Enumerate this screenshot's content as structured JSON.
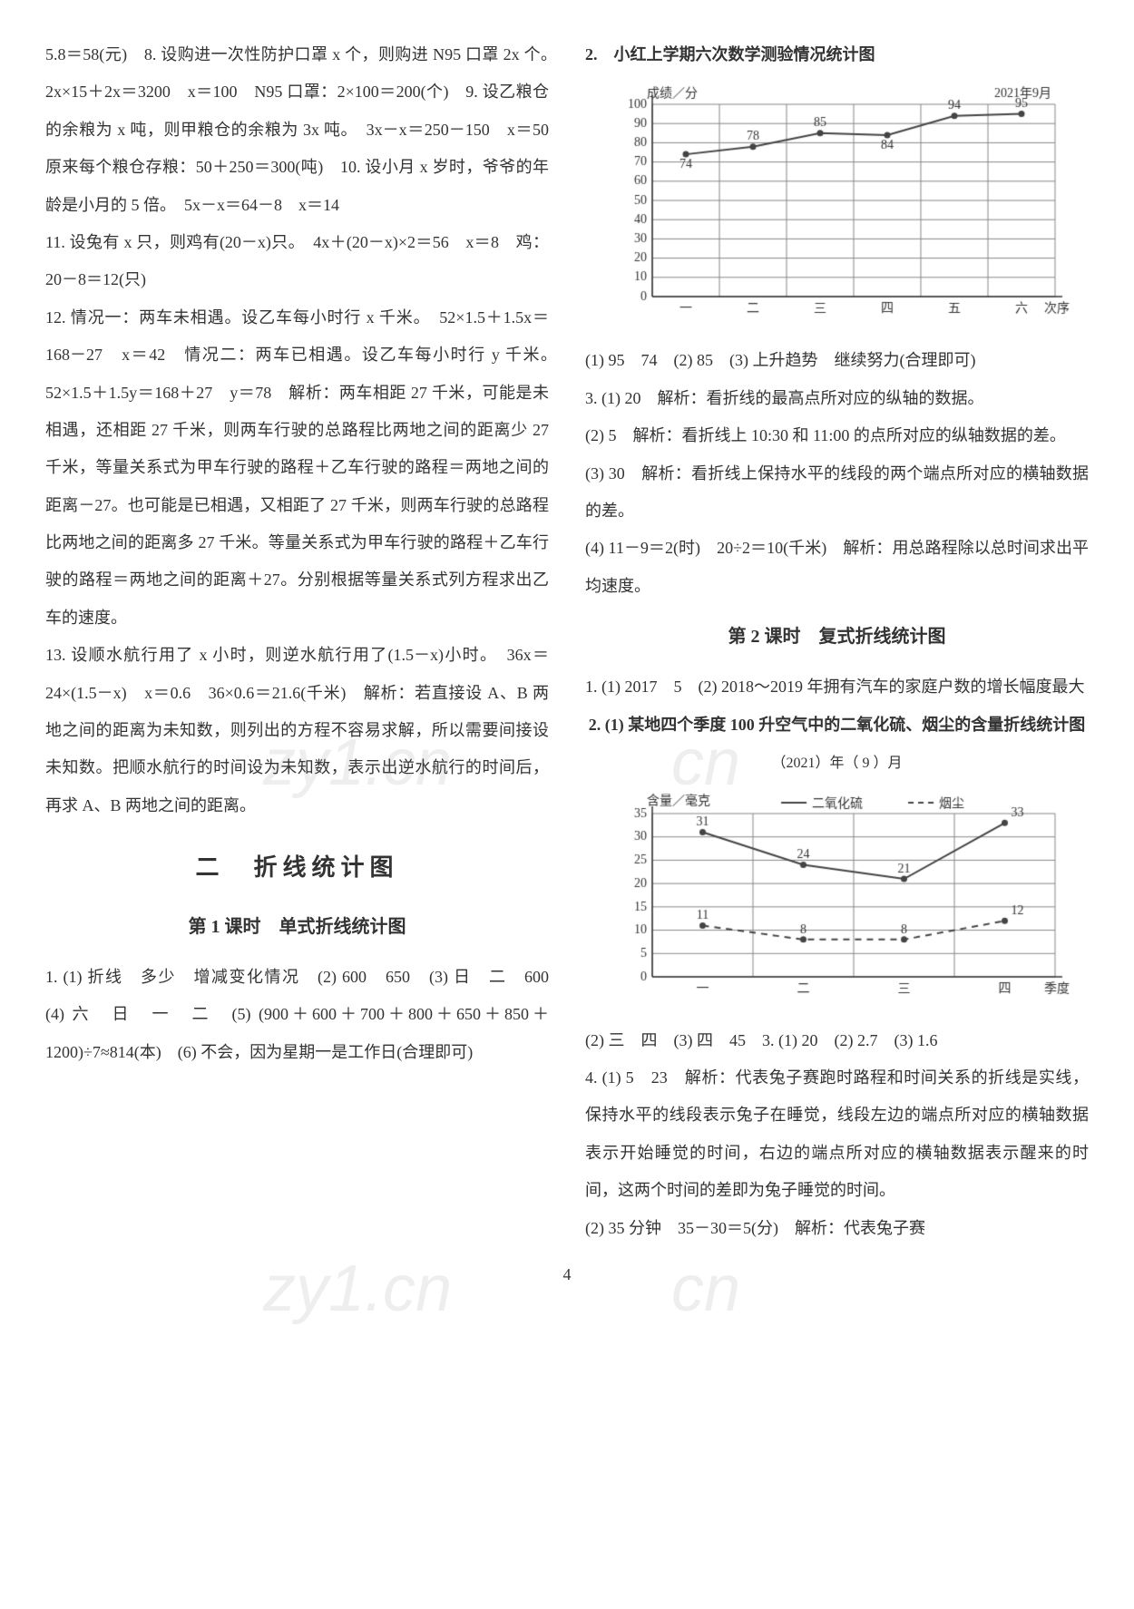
{
  "left": {
    "p1": "5.8＝58(元)　8. 设购进一次性防护口罩 x 个，则购进 N95 口罩 2x 个。　2x×15＋2x＝3200　x＝100　N95 口罩：2×100＝200(个)　9. 设乙粮仓的余粮为 x 吨，则甲粮仓的余粮为 3x 吨。　3x－x＝250－150　x＝50　原来每个粮仓存粮：50＋250＝300(吨)　10. 设小月 x 岁时，爷爷的年龄是小月的 5 倍。　5x－x＝64－8　x＝14",
    "p2": "11. 设兔有 x 只，则鸡有(20－x)只。　4x＋(20－x)×2＝56　x＝8　鸡：20－8＝12(只)",
    "p3": "12. 情况一：两车未相遇。设乙车每小时行 x 千米。　52×1.5＋1.5x＝168－27　x＝42　情况二：两车已相遇。设乙车每小时行 y 千米。　52×1.5＋1.5y＝168＋27　y＝78　解析：两车相距 27 千米，可能是未相遇，还相距 27 千米，则两车行驶的总路程比两地之间的距离少 27 千米，等量关系式为甲车行驶的路程＋乙车行驶的路程＝两地之间的距离－27。也可能是已相遇，又相距了 27 千米，则两车行驶的总路程比两地之间的距离多 27 千米。等量关系式为甲车行驶的路程＋乙车行驶的路程＝两地之间的距离＋27。分别根据等量关系式列方程求出乙车的速度。",
    "p4": "13. 设顺水航行用了 x 小时，则逆水航行用了(1.5－x)小时。　36x＝24×(1.5－x)　x＝0.6　36×0.6＝21.6(千米)　解析：若直接设 A、B 两地之间的距离为未知数，则列出的方程不容易求解，所以需要间接设未知数。把顺水航行的时间设为未知数，表示出逆水航行的时间后，再求 A、B 两地之间的距离。",
    "section_title": "二　折线统计图",
    "sub1_title": "第 1 课时　单式折线统计图",
    "p5": "1. (1) 折线　多少　增减变化情况　(2) 600　650　(3) 日　二　600　(4) 六　日　一　二　(5) (900＋600＋700＋800＋650＋850＋1200)÷7≈814(本)　(6) 不会，因为星期一是工作日(合理即可)"
  },
  "right": {
    "chart1_title": "2.　小红上学期六次数学测验情况统计图",
    "chart1": {
      "type": "line",
      "ylabel": "成绩／分",
      "date_label": "2021年9月",
      "xlabel": "次序",
      "categories": [
        "一",
        "二",
        "三",
        "四",
        "五",
        "六"
      ],
      "values": [
        74,
        78,
        85,
        84,
        94,
        95
      ],
      "value_labels": [
        "74",
        "78",
        "85",
        "84",
        "94",
        "95"
      ],
      "ylim": [
        0,
        100
      ],
      "ytick_step": 10,
      "line_color": "#444444",
      "marker_color": "#444444",
      "grid_color": "#888888",
      "background_color": "#ffffff",
      "tick_fontsize": 14,
      "label_fontsize": 14
    },
    "p1": "(1) 95　74　(2) 85　(3) 上升趋势　继续努力(合理即可)",
    "p2": "3. (1) 20　解析：看折线的最高点所对应的纵轴的数据。",
    "p3": "(2) 5　解析：看折线上 10:30 和 11:00 的点所对应的纵轴数据的差。",
    "p4": "(3) 30　解析：看折线上保持水平的线段的两个端点所对应的横轴数据的差。",
    "p5": "(4) 11－9＝2(时)　20÷2＝10(千米)　解析：用总路程除以总时间求出平均速度。",
    "sub2_title": "第 2 课时　复式折线统计图",
    "p6": "1. (1) 2017　5　(2) 2018～2019 年拥有汽车的家庭户数的增长幅度最大",
    "chart2_title": "2. (1) 某地四个季度 100 升空气中的二氧化硫、烟尘的含量折线统计图",
    "chart2_sub": "（2021）年（ 9 ）月",
    "chart2": {
      "type": "line-multi",
      "ylabel": "含量／毫克",
      "xlabel": "季度",
      "categories": [
        "一",
        "二",
        "三",
        "四"
      ],
      "series": [
        {
          "name": "二氧化硫",
          "style": "solid",
          "values": [
            31,
            24,
            21,
            33
          ],
          "labels": [
            "31",
            "24",
            "21",
            "33"
          ]
        },
        {
          "name": "烟尘",
          "style": "dash",
          "values": [
            11,
            8,
            8,
            12
          ],
          "labels": [
            "11",
            "8",
            "8",
            "12"
          ]
        }
      ],
      "ylim": [
        0,
        35
      ],
      "ytick_step": 5,
      "line_color": "#444444",
      "grid_color": "#888888",
      "background_color": "#ffffff",
      "tick_fontsize": 14,
      "label_fontsize": 14,
      "legend_pos": "top-right"
    },
    "p7": "(2) 三　四　(3) 四　45　3. (1) 20　(2) 2.7　(3) 1.6",
    "p8": "4. (1) 5　23　解析：代表兔子赛跑时路程和时间关系的折线是实线，保持水平的线段表示兔子在睡觉，线段左边的端点所对应的横轴数据表示开始睡觉的时间，右边的端点所对应的横轴数据表示醒来的时间，这两个时间的差即为兔子睡觉的时间。",
    "p9": "(2) 35 分钟　35－30＝5(分)　解析：代表兔子赛"
  },
  "watermarks": [
    "zy1.cn",
    "cn",
    "zy1.cn",
    "cn"
  ],
  "page_number": "4"
}
